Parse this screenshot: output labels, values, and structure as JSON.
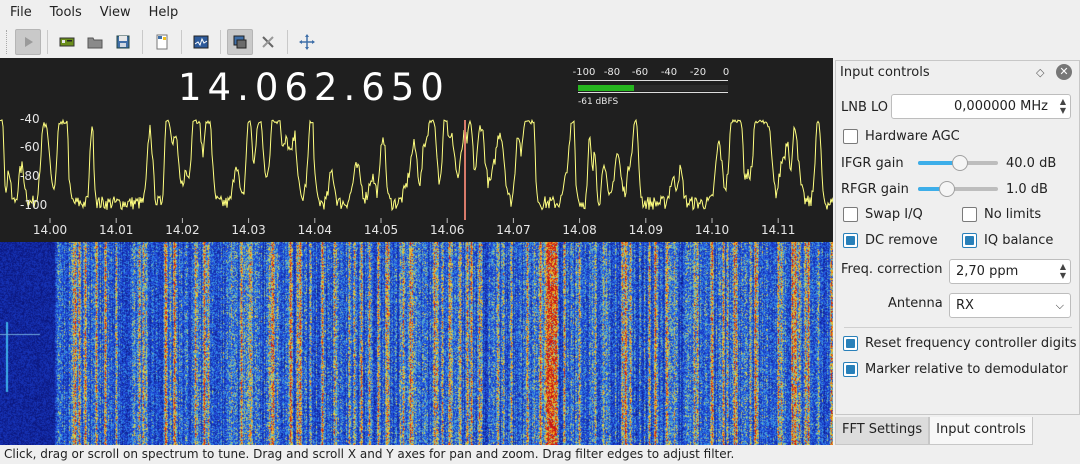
{
  "menu": [
    "File",
    "Tools",
    "View",
    "Help"
  ],
  "toolbar": {
    "buttons": [
      "play-icon",
      "device-icon",
      "open-icon",
      "save-icon",
      "remote-icon",
      "fft-icon",
      "dxc-icon",
      "tools-icon",
      "autoscale-icon"
    ]
  },
  "frequency": {
    "display": "14.062.650"
  },
  "meter": {
    "scale": [
      "-100",
      "-80",
      "-60",
      "-40",
      "-20",
      "0"
    ],
    "level_dbfs": -61,
    "readout": "-61 dBFS"
  },
  "spectrum": {
    "y_ticks": [
      "-40",
      "-60",
      "-80",
      "-100"
    ],
    "x_ticks": [
      "14.00",
      "14.01",
      "14.02",
      "14.03",
      "14.04",
      "14.05",
      "14.06",
      "14.07",
      "14.08",
      "14.09",
      "14.10",
      "14.11",
      "1"
    ]
  },
  "dock": {
    "title": "Input controls",
    "lnb_label": "LNB LO",
    "lnb_value": "0,000000 MHz",
    "hw_agc": "Hardware AGC",
    "ifgr_label": "IFGR gain",
    "ifgr_value": "40.0 dB",
    "ifgr_level": 0.53,
    "rfgr_label": "RFGR gain",
    "rfgr_value": "1.0 dB",
    "rfgr_level": 0.36,
    "swap_iq": "Swap I/Q",
    "no_limits": "No limits",
    "dc_remove": "DC remove",
    "iq_balance": "IQ balance",
    "freq_corr_label": "Freq. correction",
    "freq_corr_value": "2,70 ppm",
    "antenna_label": "Antenna",
    "antenna_value": "RX",
    "reset_digits": "Reset frequency controller digits",
    "marker_rel": "Marker relative to demodulator"
  },
  "tabs": [
    "FFT Settings",
    "Input controls"
  ],
  "status": "Click, drag or scroll on spectrum to tune. Drag and scroll X and Y axes for pan and zoom. Drag filter edges to adjust filter.",
  "colors": {
    "accent": "#3daee9",
    "check": "#2980b9",
    "trace": "#ffff80",
    "meter": "#26b61f",
    "marker": "#d87a6a"
  }
}
